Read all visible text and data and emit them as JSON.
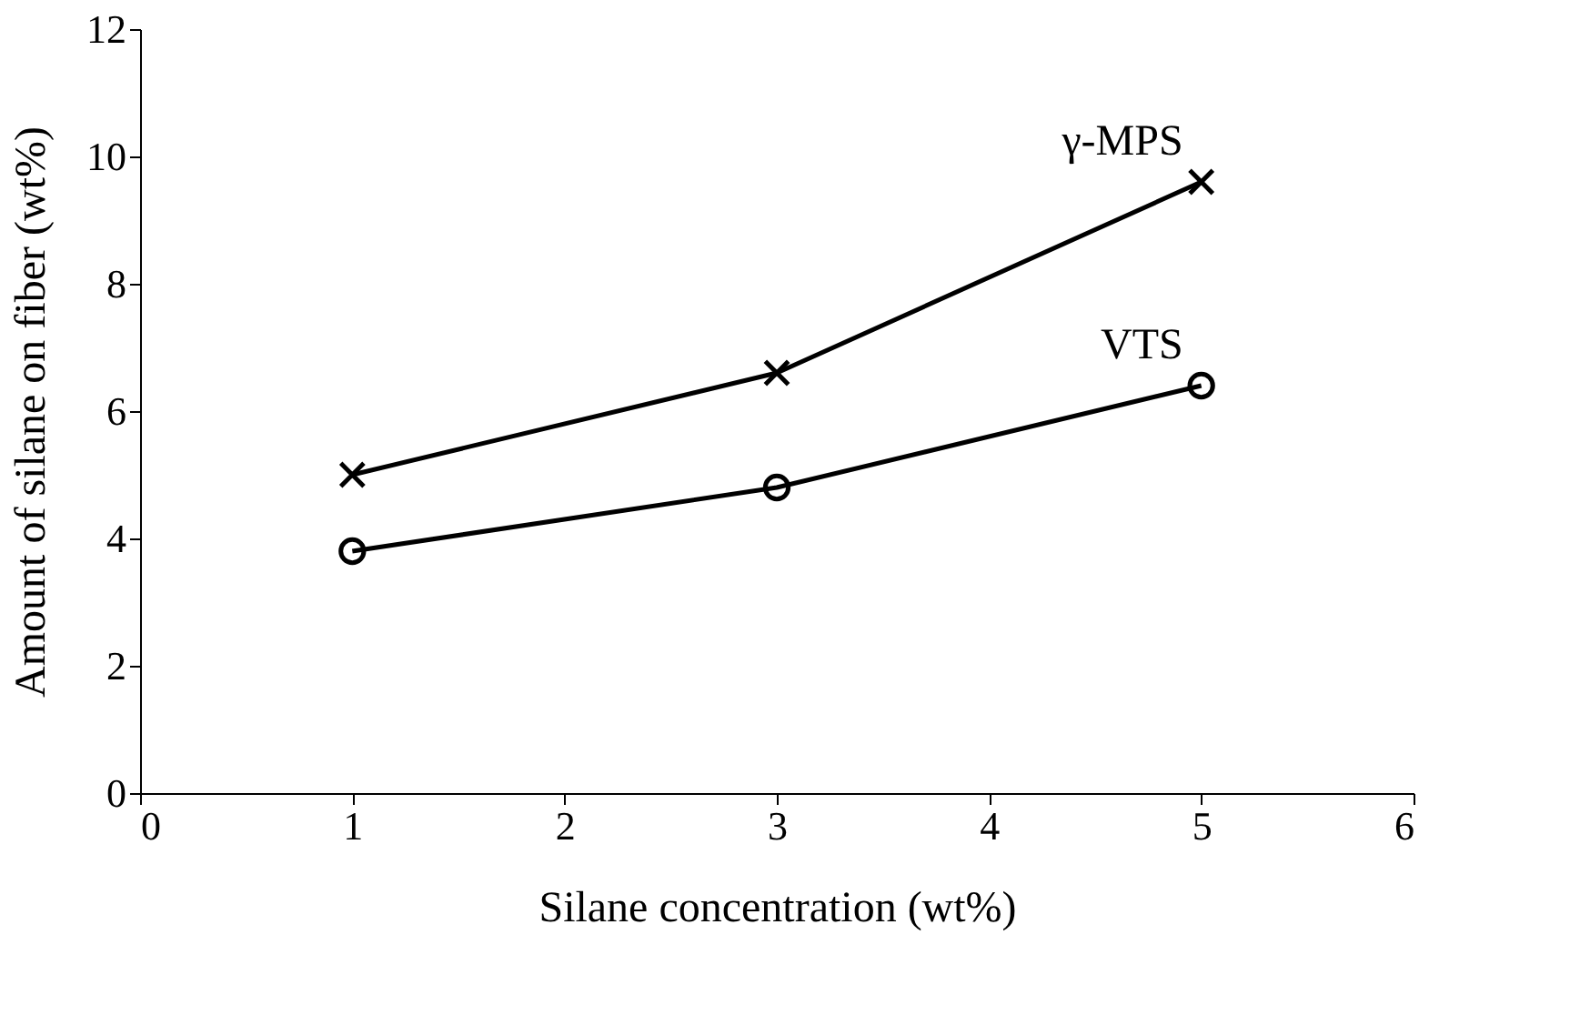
{
  "chart_data": {
    "type": "line",
    "xlabel": "Silane concentration (wt%)",
    "ylabel": "Amount of silane on fiber (wt%)",
    "x": [
      1,
      3,
      5
    ],
    "series": [
      {
        "name": "γ-MPS",
        "color": "#000000",
        "values": [
          5.0,
          6.6,
          9.6
        ],
        "marker": "cross"
      },
      {
        "name": "VTS",
        "color": "#000000",
        "values": [
          3.8,
          4.8,
          6.4
        ],
        "marker": "circle"
      }
    ],
    "xlim": [
      0,
      6
    ],
    "xticks": [
      0,
      1,
      2,
      3,
      4,
      5,
      6
    ],
    "ylim": [
      0,
      12
    ],
    "yticks": [
      0,
      2,
      4,
      6,
      8,
      10,
      12
    ],
    "grid": false,
    "line_style": "solid"
  }
}
